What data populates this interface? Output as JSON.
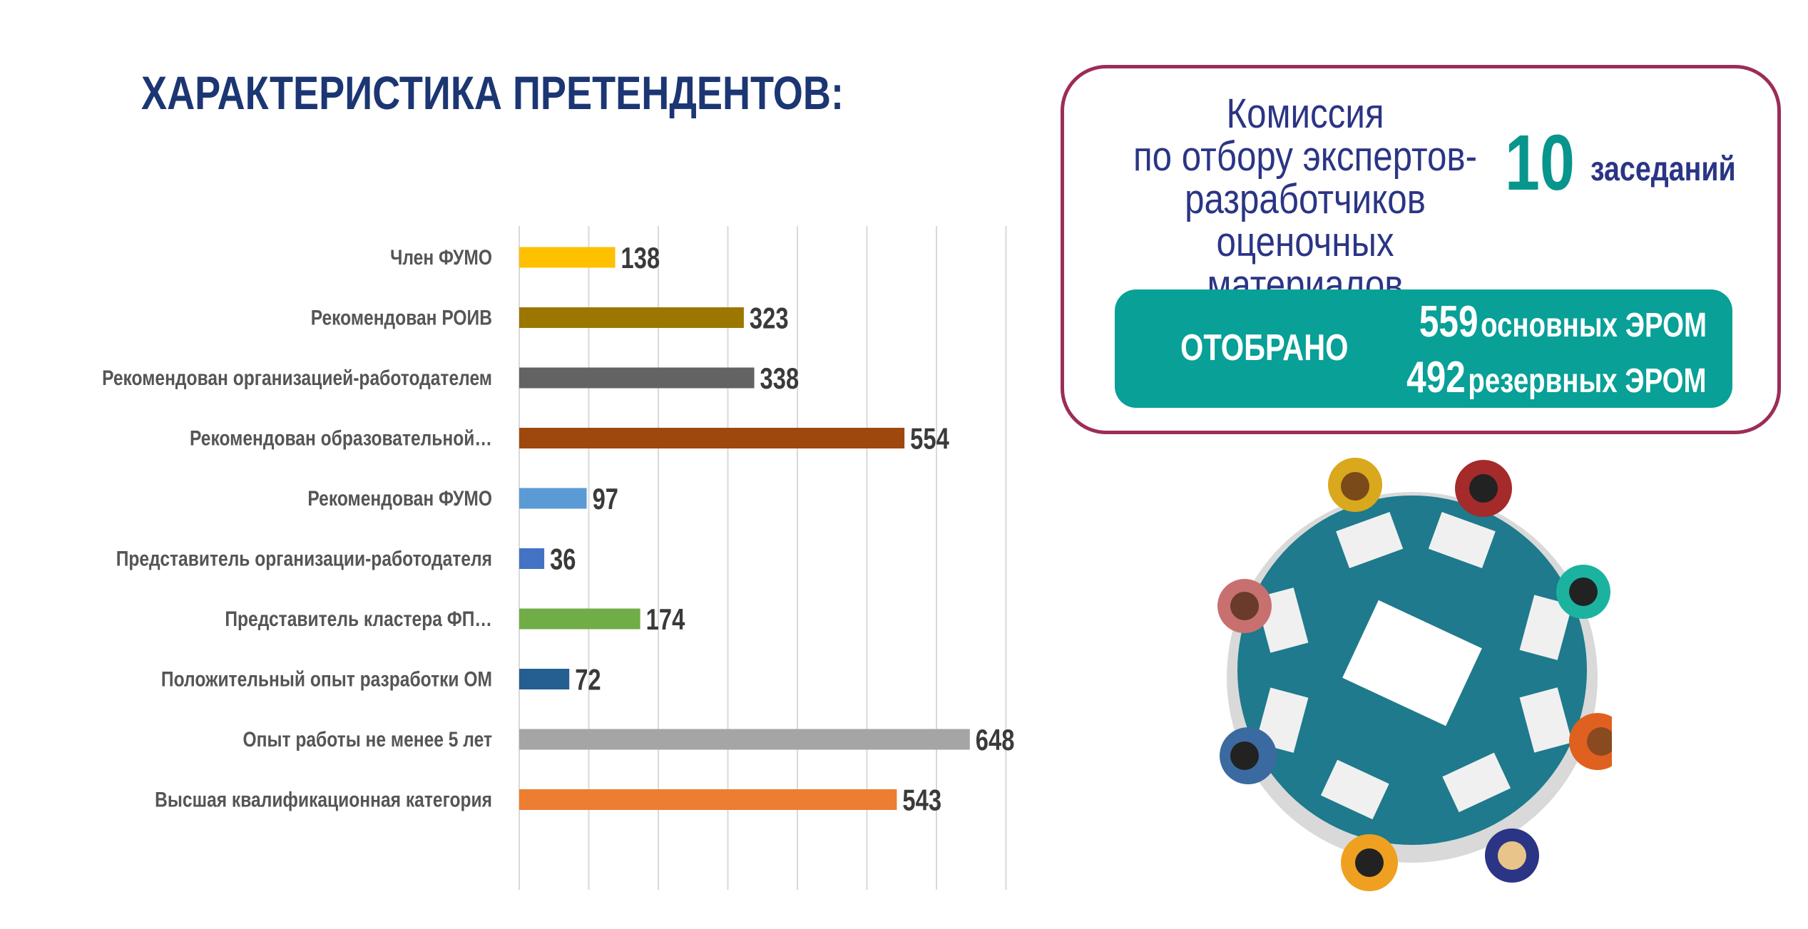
{
  "title": "ХАРАКТЕРИСТИКА ПРЕТЕНДЕНТОВ:",
  "chart_data": {
    "type": "bar",
    "orientation": "horizontal",
    "title": "ХАРАКТЕРИСТИКА ПРЕТЕНДЕНТОВ:",
    "xlabel": "",
    "ylabel": "",
    "xlim": [
      0,
      700
    ],
    "grid": true,
    "categories": [
      "Член ФУМО",
      "Рекомендован РОИВ",
      "Рекомендован организацией-работодателем",
      "Рекомендован образовательной…",
      "Рекомендован ФУМО",
      "Представитель организации-работодателя",
      "Представитель кластера ФП…",
      "Положительный опыт разработки ОМ",
      "Опыт работы не менее 5 лет",
      "Высшая квалификационная категория"
    ],
    "values": [
      138,
      323,
      338,
      554,
      97,
      36,
      174,
      72,
      648,
      543
    ],
    "colors": [
      "#ffc000",
      "#9c7700",
      "#636363",
      "#9e480e",
      "#5b9bd5",
      "#4472c4",
      "#70ad47",
      "#255e91",
      "#a5a5a5",
      "#ed7d31"
    ]
  },
  "commission": {
    "lines": [
      "Комиссия",
      "по отбору экспертов-",
      "разработчиков",
      "оценочных материалов"
    ],
    "meetings_count": "10",
    "meetings_unit": "заседаний"
  },
  "selected": {
    "label": "ОТОБРАНО",
    "main_count": "559",
    "main_text": "основных ЭРОМ",
    "reserve_count": "492",
    "reserve_text": "резервных ЭРОМ"
  },
  "colors": {
    "navy": "#1b3673",
    "teal": "#08a097",
    "border": "#9b2d58"
  }
}
